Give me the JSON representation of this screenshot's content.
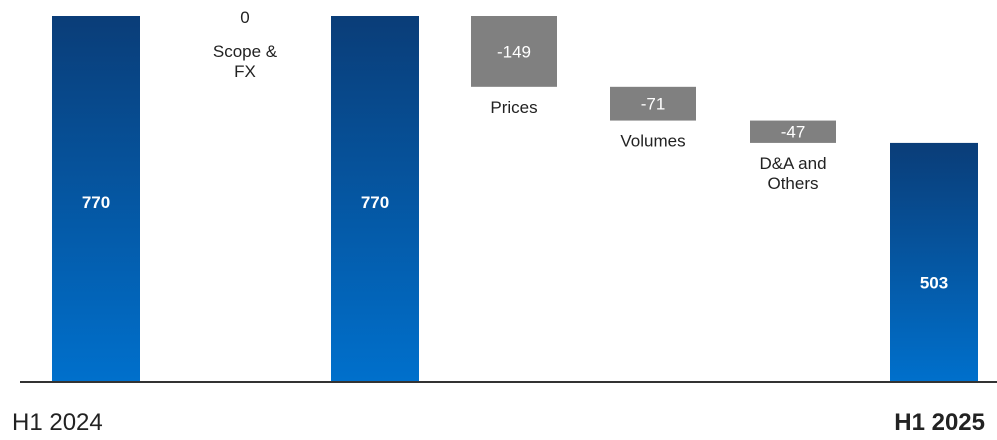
{
  "chart_data": {
    "type": "waterfall",
    "title": "",
    "xlabel": "",
    "ylabel": "",
    "ylim": [
      0,
      770
    ],
    "grid": false,
    "legend": "none",
    "colors": {
      "total_top": "#0a3d78",
      "total_bottom": "#0070cc",
      "delta": "#808080",
      "baseline": "#333333"
    },
    "steps": [
      {
        "label": "",
        "value": 770,
        "value_label": "770",
        "kind": "total"
      },
      {
        "label": "Scope &\nFX",
        "value": 0,
        "value_label": "0",
        "kind": "delta"
      },
      {
        "label": "",
        "value": 770,
        "value_label": "770",
        "kind": "total"
      },
      {
        "label": "Prices",
        "value": -149,
        "value_label": "-149",
        "kind": "delta"
      },
      {
        "label": "Volumes",
        "value": -71,
        "value_label": "-71",
        "kind": "delta"
      },
      {
        "label": "D&A and\nOthers",
        "value": -47,
        "value_label": "-47",
        "kind": "delta"
      },
      {
        "label": "",
        "value": 503,
        "value_label": "503",
        "kind": "total"
      }
    ],
    "axis_labels": {
      "start": "H1 2024",
      "end": "H1 2025"
    }
  }
}
